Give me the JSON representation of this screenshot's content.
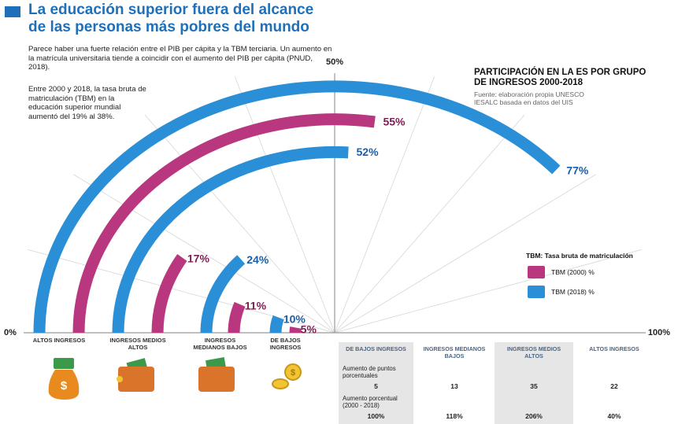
{
  "header": {
    "title": "La educación superior fuera del alcance de las personas más pobres del mundo",
    "paragraphs": [
      "Parece haber una fuerte relación entre el PIB per cápita y la TBM terciaria. Un aumento en la matrícula universitaria tiende a coincidir con el aumento del PIB per cápita (PNUD, 2018).",
      "Entre 2000 y 2018, la tasa bruta de matriculación  (TBM) en la educación superior mundial aumentó del 19% al 38%."
    ]
  },
  "chart_data": {
    "type": "radial-bar",
    "title": "PARTICIPACIÓN EN LA ES POR GRUPO DE INGRESOS 2000-2018",
    "subtitle": "Fuente: elaboración propia UNESCO IESALC basada en datos del UIS",
    "legend_title": "TBM: Tasa bruta de matriculación",
    "categories": [
      "ALTOS INGRESOS",
      "INGRESOS MEDIOS ALTOS",
      "INGRESOS MEDIANOS BAJOS",
      "DE BAJOS INGRESOS"
    ],
    "series": [
      {
        "name": "TBM (2000) %",
        "color": "#b8377f",
        "values": [
          55,
          17,
          11,
          5
        ],
        "value_labels": [
          "55%",
          "17%",
          "11%",
          "5%"
        ]
      },
      {
        "name": "TBM (2018) %",
        "color": "#2a8fd6",
        "values": [
          77,
          52,
          24,
          10
        ],
        "value_labels": [
          "77%",
          "52%",
          "24%",
          "10%"
        ]
      }
    ],
    "xlim": [
      0,
      100
    ],
    "xticks": [
      {
        "value": 0,
        "label": "0%"
      },
      {
        "value": 50,
        "label": "50%"
      },
      {
        "value": 100,
        "label": "100%"
      }
    ],
    "minor_ticks": [
      10,
      20,
      30,
      40,
      60,
      70,
      80,
      90
    ],
    "grid": true
  },
  "table": {
    "columns": [
      "DE BAJOS INGRESOS",
      "INGRESOS MEDIANOS BAJOS",
      "INGRESOS MEDIOS ALTOS",
      "ALTOS INGRESOS"
    ],
    "rows": [
      {
        "label": "Aumento de puntos porcentuales",
        "values": [
          5,
          13,
          35,
          22
        ]
      },
      {
        "label": "Aumento porcentual (2000 - 2018)",
        "values": [
          "100%",
          "118%",
          "206%",
          "40%"
        ]
      }
    ]
  }
}
